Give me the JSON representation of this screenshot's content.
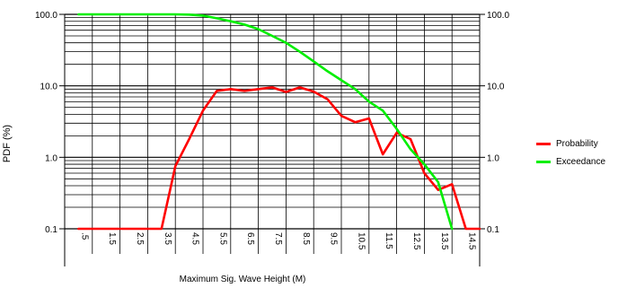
{
  "chart_data": {
    "type": "line",
    "xlabel": "Maximum  Sig. Wave Height (M)",
    "ylabel": "PDF (%)",
    "y_scale": "log",
    "ylim": [
      0.1,
      100.0
    ],
    "y_ticks": [
      "0.1",
      "1.0",
      "10.0",
      "100.0"
    ],
    "x_ticks": [
      ".5",
      "1.5",
      "2.5",
      "3.5",
      "4.5",
      "5.5",
      "6.5",
      "7.5",
      "8.5",
      "9.5",
      "10.5",
      "11.5",
      "12.5",
      "13.5",
      "14.5"
    ],
    "xlim": [
      0.0,
      15.0
    ],
    "grid": true,
    "legend_position": "right",
    "series": [
      {
        "name": "Probability",
        "color": "#ff0000",
        "x": [
          0.5,
          1.0,
          1.5,
          2.0,
          2.5,
          3.0,
          3.5,
          4.0,
          4.5,
          5.0,
          5.5,
          6.0,
          6.5,
          7.0,
          7.5,
          8.0,
          8.5,
          9.0,
          9.5,
          10.0,
          10.5,
          11.0,
          11.5,
          12.0,
          12.5,
          13.0,
          13.5,
          14.0,
          14.5,
          15.0
        ],
        "y": [
          0.1,
          0.1,
          0.1,
          0.1,
          0.1,
          0.1,
          0.1,
          0.75,
          1.8,
          4.5,
          8.5,
          9.0,
          8.5,
          9.0,
          9.5,
          8.2,
          9.5,
          8.3,
          6.5,
          3.8,
          3.1,
          3.5,
          1.1,
          2.2,
          1.8,
          0.6,
          0.35,
          0.42,
          0.1,
          0.1
        ]
      },
      {
        "name": "Exceedance",
        "color": "#00ee00",
        "x": [
          0.5,
          1.0,
          1.5,
          2.0,
          2.5,
          3.0,
          3.5,
          4.0,
          4.5,
          5.0,
          5.5,
          6.0,
          6.5,
          7.0,
          7.5,
          8.0,
          8.5,
          9.0,
          9.5,
          10.0,
          10.5,
          11.0,
          11.5,
          12.0,
          12.5,
          13.0,
          13.5,
          14.0
        ],
        "y": [
          100,
          100,
          100,
          100,
          100,
          100,
          100,
          100,
          99,
          96,
          88,
          80,
          72,
          62,
          50,
          40,
          30,
          22,
          16,
          12,
          9,
          6,
          4.5,
          2.5,
          1.3,
          0.8,
          0.45,
          0.1
        ]
      }
    ],
    "right_ticks": [
      "0.1",
      "1.0",
      "10.0",
      "100.0"
    ]
  }
}
